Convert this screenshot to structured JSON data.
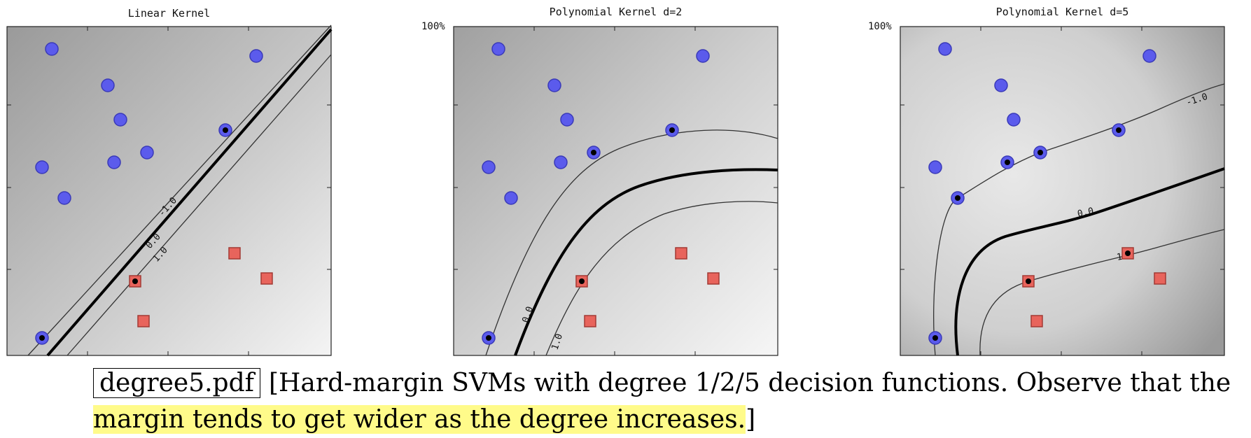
{
  "panels": [
    {
      "title": "Linear Kernel",
      "ytop_label": "",
      "contour_labels": [
        "-1.0",
        "0.0",
        "1.0"
      ]
    },
    {
      "title": "Polynomial Kernel d=2",
      "ytop_label": "100%",
      "contour_labels": [
        "0.0",
        "1.0"
      ]
    },
    {
      "title": "Polynomial Kernel d=5",
      "ytop_label": "100%",
      "contour_labels": [
        "-1.0",
        "0.0",
        "1.0"
      ]
    }
  ],
  "colors": {
    "circle": "#5b5bec",
    "square": "#e8645c",
    "support": "#000000"
  },
  "caption": {
    "file_label": "degree5.pdf",
    "line1": "[Hard-margin SVMs with degree 1/2/5 decision functions. Observe that the",
    "line2_highlight": "margin tends to get wider as the degree increases.",
    "line2_tail": "]"
  }
}
